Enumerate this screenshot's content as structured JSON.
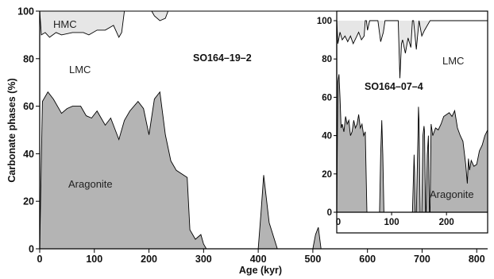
{
  "chart_data": [
    {
      "type": "area",
      "title": "",
      "core_label": "SO164–19–2",
      "xlabel": "Age (kyr)",
      "ylabel": "Carbonate phases (%)",
      "xlim": [
        0,
        820
      ],
      "ylim": [
        0,
        100
      ],
      "x_ticks": [
        0,
        100,
        200,
        300,
        400,
        500,
        600,
        700,
        800
      ],
      "y_ticks": [
        0,
        20,
        40,
        60,
        80,
        100
      ],
      "region_labels": [
        "HMC",
        "LMC",
        "Aragonite"
      ],
      "colors": {
        "aragonite_fill": "#b4b4b4",
        "hmc_fill": "#e6e6e6",
        "line": "#000000"
      },
      "series": [
        {
          "name": "Aragonite",
          "x": [
            0,
            5,
            15,
            25,
            40,
            50,
            60,
            75,
            85,
            95,
            105,
            120,
            130,
            145,
            155,
            165,
            180,
            190,
            200,
            210,
            220,
            230,
            240,
            250,
            270,
            275,
            285,
            295,
            300,
            305,
            400,
            405,
            410,
            420,
            435,
            500,
            505,
            510,
            515
          ],
          "y": [
            0,
            62,
            66,
            63,
            57,
            59,
            60,
            60,
            56,
            55,
            58,
            52,
            55,
            46,
            54,
            58,
            62,
            59,
            48,
            63,
            66,
            48,
            37,
            33,
            30,
            8,
            4,
            6,
            2,
            0,
            0,
            15,
            31,
            11,
            0,
            0,
            6,
            9,
            0
          ]
        },
        {
          "name": "HMC",
          "x": [
            0,
            3,
            10,
            18,
            30,
            40,
            60,
            80,
            90,
            105,
            120,
            135,
            145,
            150,
            155,
            200,
            205,
            210,
            220,
            230,
            235
          ],
          "y": [
            100,
            90,
            91,
            89,
            91,
            90,
            91,
            91,
            90,
            92,
            92,
            94,
            89,
            91,
            100,
            100,
            100,
            98,
            96,
            97,
            100
          ]
        }
      ]
    },
    {
      "type": "area",
      "title": "",
      "core_label": "SO164–07–4",
      "xlim": [
        0,
        275
      ],
      "ylim": [
        0,
        100
      ],
      "x_ticks": [
        0,
        100,
        200
      ],
      "y_ticks": [
        0,
        20,
        40,
        60,
        80,
        100
      ],
      "region_labels": [
        "LMC",
        "Aragonite"
      ],
      "series": [
        {
          "name": "Aragonite",
          "x": [
            0,
            2,
            4,
            6,
            8,
            10,
            13,
            16,
            19,
            22,
            25,
            28,
            31,
            34,
            37,
            40,
            43,
            46,
            49,
            52,
            55,
            78,
            80,
            82,
            84,
            86,
            138,
            140,
            141,
            142,
            143,
            145,
            148,
            149,
            150,
            151,
            152,
            155,
            157,
            159,
            160,
            161,
            162,
            163,
            165,
            167,
            168,
            169,
            170,
            172,
            175,
            180,
            185,
            190,
            195,
            200,
            205,
            210,
            215,
            220,
            225,
            230,
            235,
            238,
            240,
            242,
            245,
            250,
            255,
            260,
            265,
            270,
            275
          ],
          "y": [
            0,
            68,
            72,
            60,
            44,
            46,
            42,
            50,
            46,
            48,
            40,
            42,
            48,
            44,
            46,
            51,
            44,
            46,
            40,
            42,
            0,
            0,
            30,
            48,
            30,
            0,
            0,
            20,
            30,
            20,
            0,
            0,
            40,
            55,
            48,
            25,
            0,
            0,
            40,
            45,
            42,
            20,
            0,
            0,
            30,
            40,
            15,
            0,
            0,
            46,
            40,
            44,
            43,
            46,
            50,
            51,
            52,
            50,
            53,
            44,
            40,
            37,
            25,
            15,
            28,
            22,
            27,
            24,
            25,
            32,
            35,
            40,
            43
          ]
        },
        {
          "name": "HMC",
          "x": [
            0,
            2,
            4,
            6,
            10,
            15,
            20,
            25,
            30,
            35,
            40,
            45,
            50,
            52,
            54,
            56,
            60,
            75,
            80,
            85,
            88,
            100,
            112,
            115,
            118,
            120,
            125,
            130,
            135,
            138,
            140,
            145,
            150,
            155,
            160,
            170,
            185,
            210,
            240,
            275
          ],
          "y": [
            100,
            88,
            91,
            94,
            90,
            92,
            89,
            92,
            88,
            91,
            94,
            90,
            92,
            100,
            100,
            95,
            100,
            100,
            89,
            94,
            100,
            100,
            100,
            70,
            88,
            90,
            83,
            91,
            86,
            100,
            100,
            85,
            100,
            92,
            95,
            100,
            100,
            100,
            100,
            100
          ]
        }
      ]
    }
  ]
}
